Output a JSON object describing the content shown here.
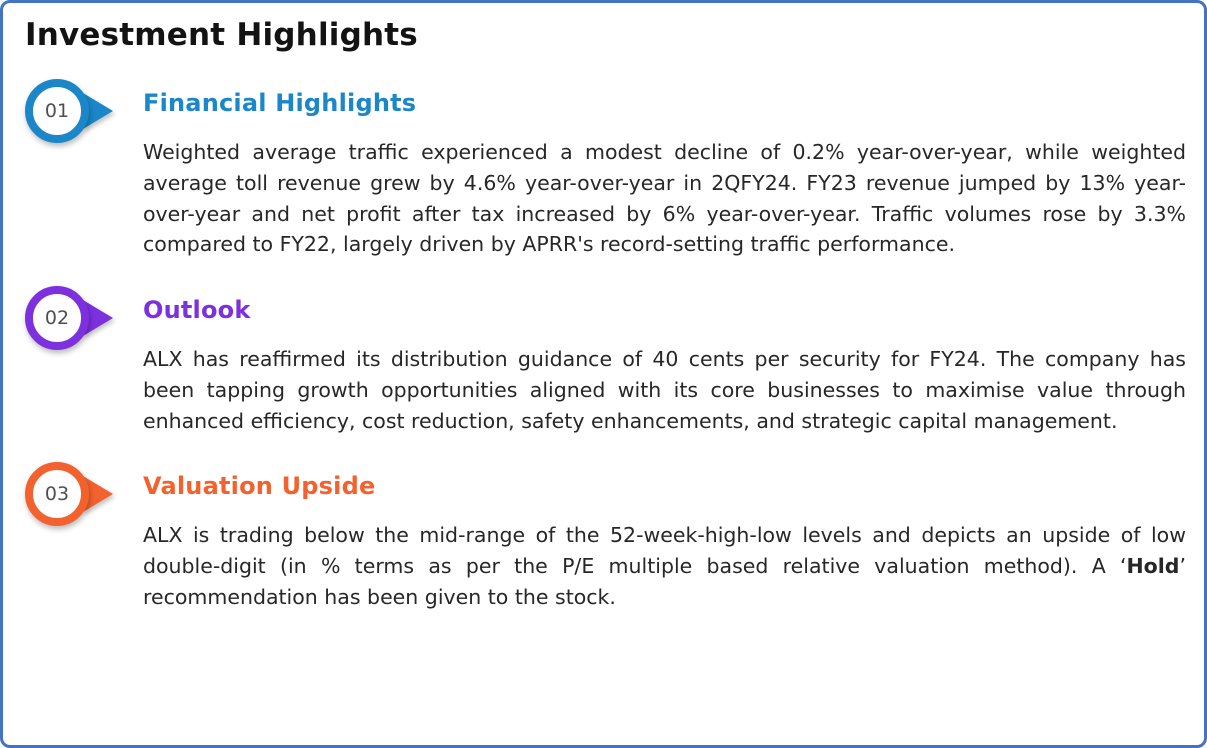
{
  "page": {
    "title": "Investment Highlights",
    "border_color": "#4472c4"
  },
  "sections": [
    {
      "number": "01",
      "heading": "Financial Highlights",
      "accent_color": "#1b87c9",
      "body": "Weighted average traffic experienced a modest decline of 0.2% year-over-year, while weighted average toll revenue grew by 4.6% year-over-year in 2QFY24. FY23 revenue jumped by 13% year-over-year and net profit after tax increased by 6% year-over-year. Traffic volumes rose by 3.3% compared to FY22, largely driven by APRR's record-setting traffic performance."
    },
    {
      "number": "02",
      "heading": "Outlook",
      "accent_color": "#7d30dd",
      "body": "ALX has reaffirmed its distribution guidance of 40 cents per security for FY24. The company has been tapping growth opportunities aligned with its core businesses to maximise value through enhanced efficiency, cost reduction, safety enhancements, and strategic capital management."
    },
    {
      "number": "03",
      "heading": "Valuation Upside",
      "accent_color": "#f3622e",
      "body_before_bold": "ALX is trading below the mid-range of the 52-week-high-low levels and depicts an upside of low double-digit (in % terms as per the P/E multiple based relative valuation method). A ‘",
      "bold_word": "Hold",
      "body_after_bold": "’ recommendation has been given to the stock."
    }
  ]
}
